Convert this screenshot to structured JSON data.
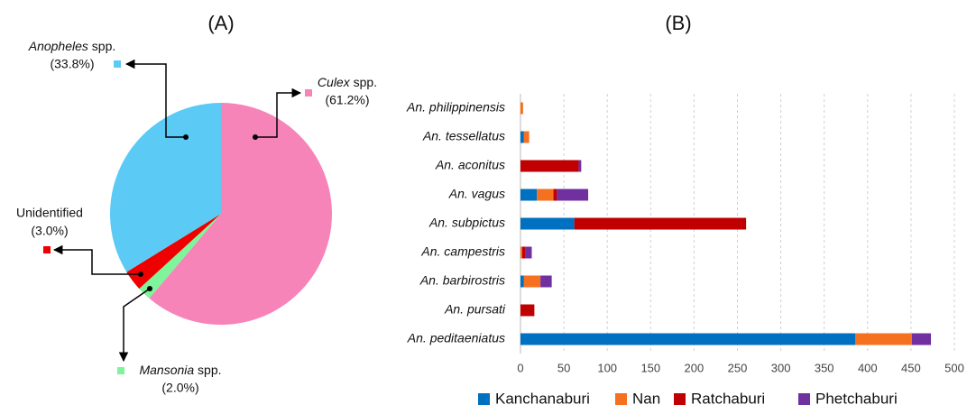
{
  "chart_data": [
    {
      "type": "pie",
      "title": "(A)",
      "categories": [
        "Culex spp.",
        "Mansonia spp.",
        "Unidentified",
        "Anopheles spp."
      ],
      "values": [
        61.2,
        2.0,
        3.0,
        33.8
      ],
      "value_labels": [
        "(61.2%)",
        "(2.0%)",
        "(3.0%)",
        "(33.8%)"
      ],
      "colors": [
        "#f784b9",
        "#7ef59a",
        "#ee0000",
        "#5bcbf5"
      ]
    },
    {
      "type": "stacked-barh",
      "title": "(B)",
      "categories": [
        "An. philippinensis",
        "An. tessellatus",
        "An. aconitus",
        "An. vagus",
        "An. subpictus",
        "An. campestris",
        "An. barbirostris",
        "An. pursati",
        "An. peditaeniatus"
      ],
      "series": [
        {
          "name": "Kanchanaburi",
          "color": "#0070c0",
          "values": [
            0,
            4,
            0,
            19,
            62,
            0,
            4,
            0,
            386
          ]
        },
        {
          "name": "Nan",
          "color": "#f5701f",
          "values": [
            3,
            6,
            0,
            19,
            0,
            2,
            19,
            0,
            65
          ]
        },
        {
          "name": "Ratchaburi",
          "color": "#c00000",
          "values": [
            0,
            0,
            67,
            4,
            198,
            4,
            0,
            16,
            0
          ]
        },
        {
          "name": "Phetchaburi",
          "color": "#7030a0",
          "values": [
            0,
            0,
            3,
            36,
            0,
            7,
            13,
            0,
            22
          ]
        }
      ],
      "xlim": [
        0,
        500
      ],
      "xticks": [
        0,
        50,
        100,
        150,
        200,
        250,
        300,
        350,
        400,
        450,
        500
      ],
      "grid": true
    }
  ]
}
